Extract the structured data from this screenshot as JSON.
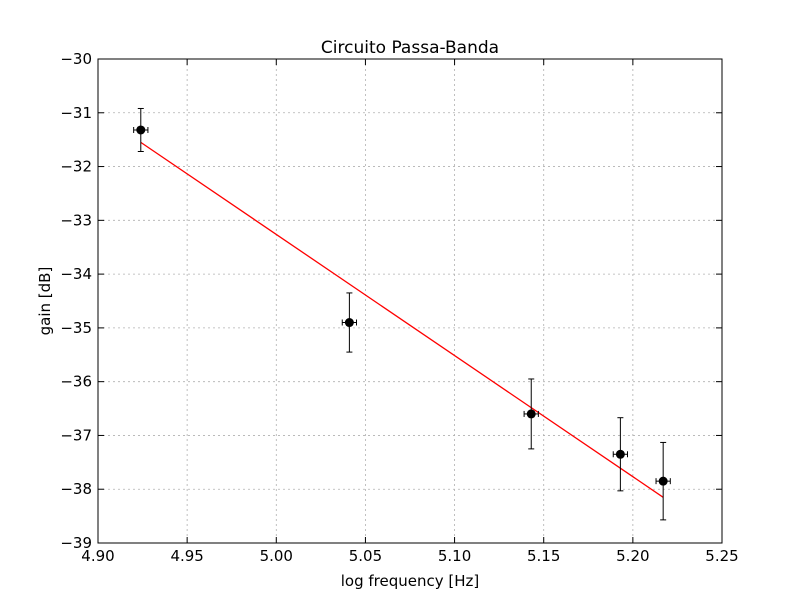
{
  "chart_data": {
    "type": "scatter",
    "title": "Circuito Passa-Banda",
    "xlabel": "log frequency [Hz]",
    "ylabel": "gain [dB]",
    "xlim": [
      4.9,
      5.25
    ],
    "ylim": [
      -39,
      -30
    ],
    "grid": true,
    "x_ticks": [
      4.9,
      4.95,
      5.0,
      5.05,
      5.1,
      5.15,
      5.2,
      5.25
    ],
    "x_tick_labels": [
      "4.90",
      "4.95",
      "5.00",
      "5.05",
      "5.10",
      "5.15",
      "5.20",
      "5.25"
    ],
    "y_ticks": [
      -30,
      -31,
      -32,
      -33,
      -34,
      -35,
      -36,
      -37,
      -38,
      -39
    ],
    "y_tick_labels": [
      "−30",
      "−31",
      "−32",
      "−33",
      "−34",
      "−35",
      "−36",
      "−37",
      "−38",
      "−39"
    ],
    "series": [
      {
        "kind": "errorbar",
        "color": "#000000",
        "points": [
          {
            "x": 4.924,
            "y": -31.32,
            "xerr": 0.004,
            "yerr": 0.4
          },
          {
            "x": 5.041,
            "y": -34.9,
            "xerr": 0.004,
            "yerr": 0.55
          },
          {
            "x": 5.143,
            "y": -36.6,
            "xerr": 0.004,
            "yerr": 0.65
          },
          {
            "x": 5.193,
            "y": -37.35,
            "xerr": 0.004,
            "yerr": 0.68
          },
          {
            "x": 5.217,
            "y": -37.85,
            "xerr": 0.004,
            "yerr": 0.72
          }
        ]
      },
      {
        "kind": "fit-line",
        "color": "#ff0000",
        "x": [
          4.924,
          5.217
        ],
        "y": [
          -31.55,
          -38.15
        ]
      }
    ]
  }
}
